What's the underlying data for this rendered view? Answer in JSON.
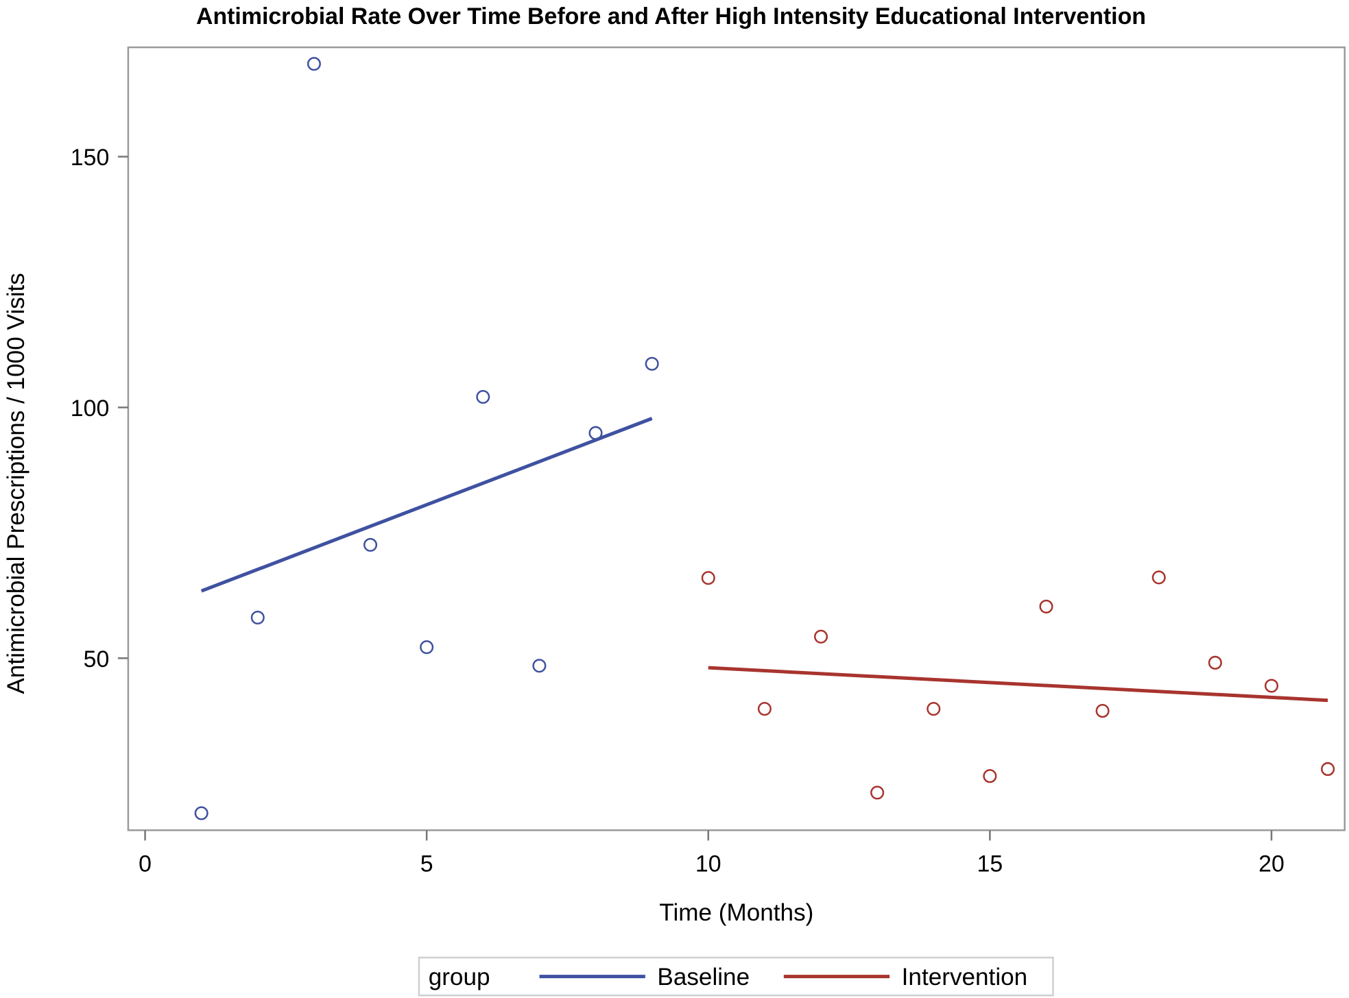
{
  "chart_data": {
    "type": "scatter",
    "title": "Antimicrobial Rate Over Time Before and After High Intensity Educational Intervention",
    "xlabel": "Time (Months)",
    "ylabel": "Antimicrobial Prescriptions / 1000 Visits",
    "xlim": [
      -0.3,
      21.3
    ],
    "ylim": [
      15.7,
      171.8
    ],
    "xticks": [
      0,
      5,
      10,
      15,
      20
    ],
    "yticks": [
      50,
      100,
      150
    ],
    "grid": false,
    "legend": {
      "title": "group",
      "placement": "bottom"
    },
    "series": [
      {
        "name": "Baseline",
        "color": "#3F51A0",
        "points": [
          {
            "x": 1,
            "y": 19.1
          },
          {
            "x": 2,
            "y": 58.1
          },
          {
            "x": 3,
            "y": 168.5
          },
          {
            "x": 4,
            "y": 72.6
          },
          {
            "x": 5,
            "y": 52.2
          },
          {
            "x": 6,
            "y": 102.1
          },
          {
            "x": 7,
            "y": 48.5
          },
          {
            "x": 8,
            "y": 94.9
          },
          {
            "x": 9,
            "y": 108.7
          }
        ],
        "fit_line": [
          {
            "x": 1,
            "y": 63.4
          },
          {
            "x": 9,
            "y": 97.8
          }
        ]
      },
      {
        "name": "Intervention",
        "color": "#A8342E",
        "points": [
          {
            "x": 10,
            "y": 66.0
          },
          {
            "x": 11,
            "y": 39.9
          },
          {
            "x": 12,
            "y": 54.3
          },
          {
            "x": 13,
            "y": 23.2
          },
          {
            "x": 14,
            "y": 39.9
          },
          {
            "x": 15,
            "y": 26.5
          },
          {
            "x": 16,
            "y": 60.3
          },
          {
            "x": 17,
            "y": 39.5
          },
          {
            "x": 18,
            "y": 66.1
          },
          {
            "x": 19,
            "y": 49.1
          },
          {
            "x": 20,
            "y": 44.5
          },
          {
            "x": 21,
            "y": 27.9
          }
        ],
        "fit_line": [
          {
            "x": 10,
            "y": 48.1
          },
          {
            "x": 21,
            "y": 41.6
          }
        ]
      }
    ]
  }
}
